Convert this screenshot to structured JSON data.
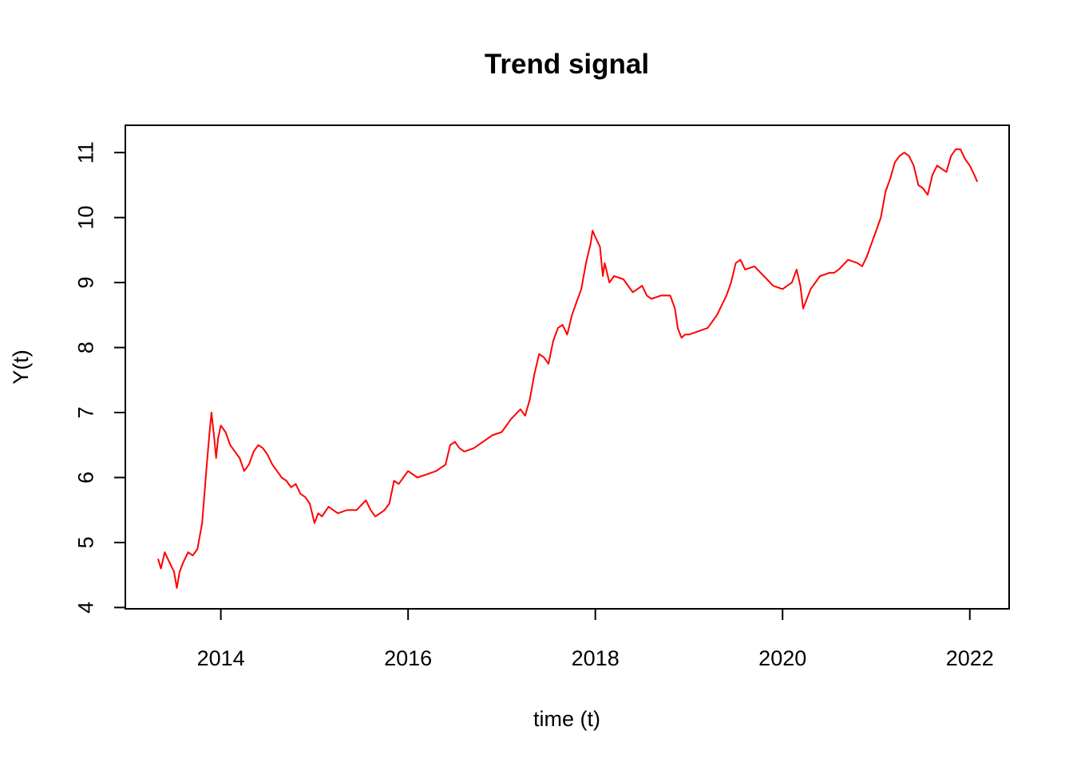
{
  "chart_data": {
    "type": "line",
    "title": "Trend signal",
    "xlabel": "time (t)",
    "ylabel": "Y(t)",
    "xlim": [
      2012.98,
      2022.42
    ],
    "ylim": [
      3.98,
      11.42
    ],
    "x_ticks": [
      2014,
      2016,
      2018,
      2020,
      2022
    ],
    "y_ticks": [
      4,
      5,
      6,
      7,
      8,
      9,
      10,
      11
    ],
    "grid": false,
    "legend": "none",
    "series": [
      {
        "color": "#ff0000",
        "x": [
          2013.33,
          2013.36,
          2013.4,
          2013.45,
          2013.5,
          2013.53,
          2013.56,
          2013.6,
          2013.65,
          2013.7,
          2013.75,
          2013.8,
          2013.85,
          2013.88,
          2013.9,
          2013.93,
          2013.95,
          2013.97,
          2014.0,
          2014.05,
          2014.1,
          2014.15,
          2014.2,
          2014.25,
          2014.3,
          2014.35,
          2014.4,
          2014.45,
          2014.5,
          2014.55,
          2014.6,
          2014.65,
          2014.7,
          2014.75,
          2014.8,
          2014.85,
          2014.9,
          2014.95,
          2015.0,
          2015.04,
          2015.08,
          2015.15,
          2015.25,
          2015.35,
          2015.45,
          2015.55,
          2015.6,
          2015.65,
          2015.7,
          2015.75,
          2015.8,
          2015.85,
          2015.9,
          2016.0,
          2016.1,
          2016.2,
          2016.3,
          2016.4,
          2016.45,
          2016.5,
          2016.55,
          2016.6,
          2016.7,
          2016.8,
          2016.9,
          2017.0,
          2017.1,
          2017.2,
          2017.25,
          2017.3,
          2017.35,
          2017.4,
          2017.45,
          2017.5,
          2017.55,
          2017.6,
          2017.65,
          2017.7,
          2017.75,
          2017.8,
          2017.85,
          2017.9,
          2017.95,
          2017.97,
          2018.0,
          2018.05,
          2018.08,
          2018.1,
          2018.15,
          2018.2,
          2018.3,
          2018.4,
          2018.5,
          2018.55,
          2018.6,
          2018.7,
          2018.8,
          2018.85,
          2018.88,
          2018.92,
          2018.96,
          2019.0,
          2019.1,
          2019.2,
          2019.3,
          2019.4,
          2019.45,
          2019.5,
          2019.55,
          2019.6,
          2019.7,
          2019.8,
          2019.9,
          2020.0,
          2020.1,
          2020.15,
          2020.19,
          2020.22,
          2020.3,
          2020.4,
          2020.5,
          2020.55,
          2020.6,
          2020.7,
          2020.8,
          2020.85,
          2020.9,
          2020.95,
          2021.0,
          2021.05,
          2021.1,
          2021.15,
          2021.2,
          2021.25,
          2021.3,
          2021.35,
          2021.4,
          2021.45,
          2021.5,
          2021.55,
          2021.6,
          2021.65,
          2021.7,
          2021.75,
          2021.8,
          2021.85,
          2021.9,
          2021.95,
          2022.0,
          2022.05,
          2022.08
        ],
        "y": [
          4.75,
          4.6,
          4.85,
          4.7,
          4.55,
          4.3,
          4.55,
          4.7,
          4.85,
          4.8,
          4.9,
          5.3,
          6.2,
          6.7,
          7.0,
          6.6,
          6.3,
          6.6,
          6.8,
          6.7,
          6.5,
          6.4,
          6.3,
          6.1,
          6.2,
          6.4,
          6.5,
          6.45,
          6.35,
          6.2,
          6.1,
          6.0,
          5.95,
          5.85,
          5.9,
          5.75,
          5.7,
          5.6,
          5.3,
          5.45,
          5.4,
          5.55,
          5.45,
          5.5,
          5.5,
          5.65,
          5.5,
          5.4,
          5.45,
          5.5,
          5.6,
          5.95,
          5.9,
          6.1,
          6.0,
          6.05,
          6.1,
          6.2,
          6.5,
          6.55,
          6.45,
          6.4,
          6.45,
          6.55,
          6.65,
          6.7,
          6.9,
          7.05,
          6.95,
          7.2,
          7.6,
          7.9,
          7.85,
          7.75,
          8.1,
          8.3,
          8.35,
          8.2,
          8.5,
          8.7,
          8.9,
          9.3,
          9.6,
          9.8,
          9.7,
          9.55,
          9.1,
          9.3,
          9.0,
          9.1,
          9.05,
          8.85,
          8.95,
          8.8,
          8.75,
          8.8,
          8.8,
          8.6,
          8.3,
          8.15,
          8.2,
          8.2,
          8.25,
          8.3,
          8.5,
          8.8,
          9.0,
          9.3,
          9.35,
          9.2,
          9.25,
          9.1,
          8.95,
          8.9,
          9.0,
          9.2,
          8.95,
          8.6,
          8.9,
          9.1,
          9.15,
          9.15,
          9.2,
          9.35,
          9.3,
          9.25,
          9.4,
          9.6,
          9.8,
          10.0,
          10.4,
          10.6,
          10.85,
          10.95,
          11.0,
          10.95,
          10.8,
          10.5,
          10.45,
          10.35,
          10.65,
          10.8,
          10.75,
          10.7,
          10.95,
          11.05,
          11.05,
          10.9,
          10.8,
          10.65,
          10.55
        ]
      }
    ]
  }
}
